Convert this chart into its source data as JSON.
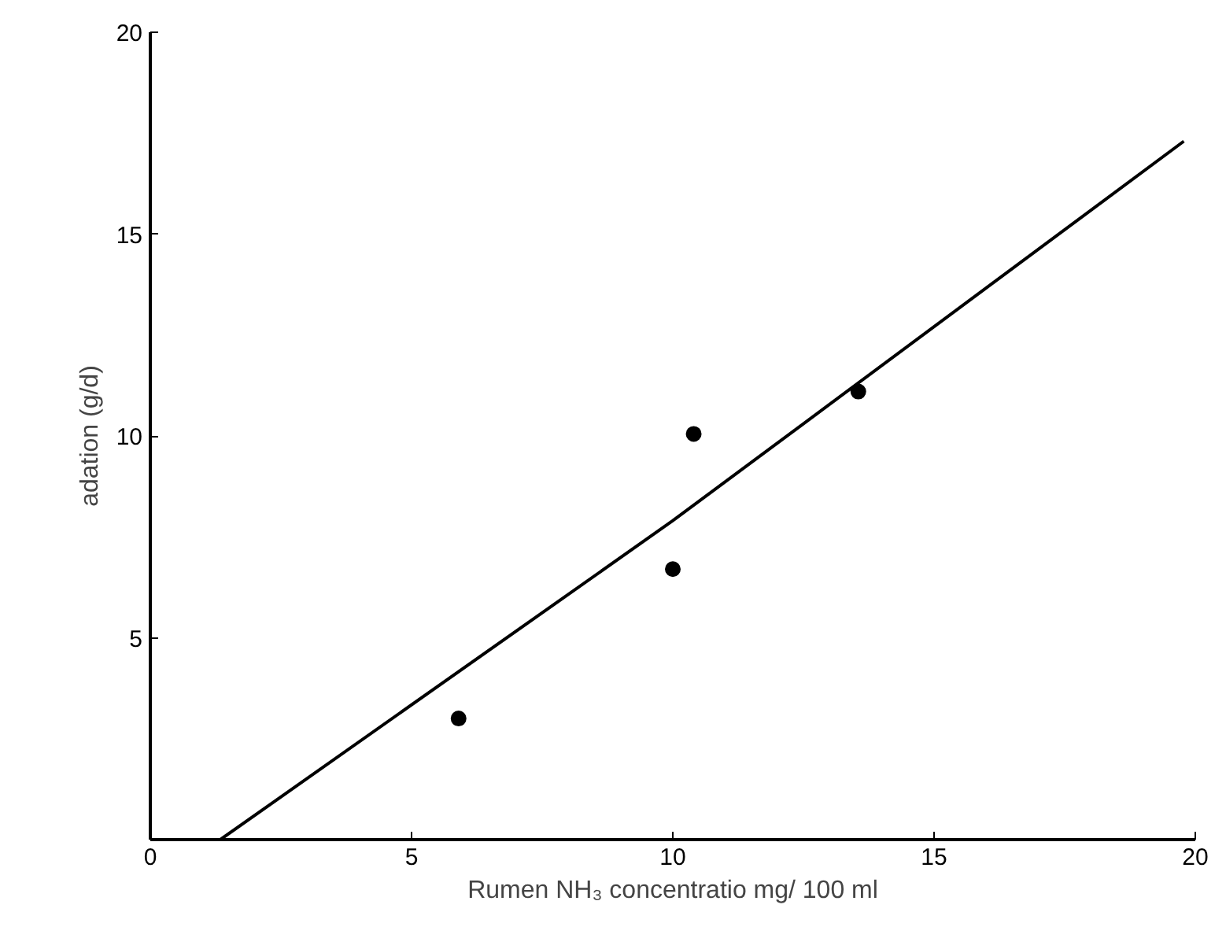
{
  "chart_data": {
    "type": "scatter",
    "xlabel": "Rumen NH₃ concentratio mg/ 100 ml",
    "ylabel": "adation (g/d)",
    "xlim": [
      0,
      20
    ],
    "ylim": [
      0,
      20
    ],
    "xticks": [
      0,
      5,
      10,
      15,
      20
    ],
    "yticks": [
      5,
      10,
      15,
      20
    ],
    "grid": false,
    "series": [
      {
        "color": "#000000",
        "marker": "circle",
        "x": [
          5.9,
          10.0,
          10.4,
          13.55
        ],
        "values": [
          3.0,
          6.7,
          10.05,
          11.1
        ]
      },
      {
        "type": "line",
        "color": "#000000",
        "marker": "none",
        "line_style": "solid",
        "x": [
          1.34,
          10.0,
          19.78
        ],
        "values": [
          0,
          7.9,
          17.3
        ]
      }
    ]
  }
}
